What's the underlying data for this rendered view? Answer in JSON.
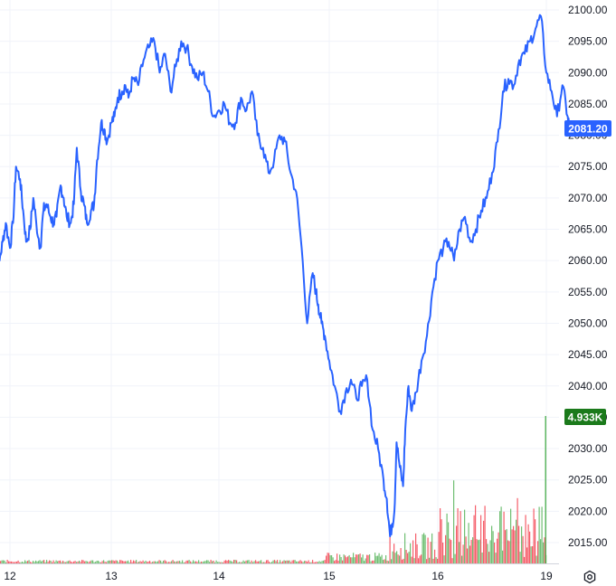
{
  "chart_data": {
    "type": "line",
    "title": "",
    "xlabel": "",
    "ylabel": "",
    "x_ticks": [
      "12",
      "13",
      "14",
      "15",
      "16",
      "19"
    ],
    "y_ticks": [
      "2015.00",
      "2020.00",
      "2025.00",
      "2030.00",
      "2035.00",
      "2040.00",
      "2045.00",
      "2050.00",
      "2055.00",
      "2060.00",
      "2065.00",
      "2070.00",
      "2075.00",
      "2080.00",
      "2085.00",
      "2090.00",
      "2095.00",
      "2100.00"
    ],
    "ylim": [
      2013.5,
      2101.5
    ],
    "grid": true,
    "series": [
      {
        "color": "#2962ff",
        "x": [
          11.85,
          11.87,
          11.9,
          11.93,
          11.96,
          12.0,
          12.03,
          12.06,
          12.1,
          12.13,
          12.16,
          12.2,
          12.23,
          12.26,
          12.3,
          12.33,
          12.36,
          12.4,
          12.43,
          12.46,
          12.5,
          12.53,
          12.56,
          12.6,
          12.63,
          12.66,
          12.7,
          12.73,
          12.76,
          12.8,
          12.83,
          12.86,
          12.9,
          12.93,
          12.96,
          13.0,
          13.03,
          13.06,
          13.1,
          13.13,
          13.16,
          13.2,
          13.25,
          13.3,
          13.35,
          13.4,
          13.45,
          13.5,
          13.55,
          13.6,
          13.65,
          13.7,
          13.75,
          13.8,
          13.85,
          13.9,
          13.95,
          14.0,
          14.05,
          14.1,
          14.15,
          14.2,
          14.25,
          14.3,
          14.35,
          14.4,
          14.45,
          14.5,
          14.55,
          14.6,
          14.65,
          14.7,
          14.75,
          14.8,
          14.85,
          14.88,
          14.9,
          14.93,
          14.96,
          15.0,
          15.05,
          15.1,
          15.15,
          15.2,
          15.25,
          15.3,
          15.35,
          15.4,
          15.45,
          15.5,
          15.53,
          15.56,
          15.58,
          15.6,
          15.62,
          15.65,
          15.68,
          15.7,
          15.73,
          15.76,
          15.8,
          15.85,
          15.9,
          15.95,
          16.0,
          16.05,
          16.1,
          16.15,
          16.2,
          16.25,
          16.3,
          16.35,
          16.4,
          16.45,
          16.5,
          16.55,
          16.6,
          16.65,
          16.7,
          16.75,
          16.8,
          16.85,
          16.9,
          16.95,
          17.0,
          17.05,
          17.1,
          17.15,
          17.2,
          17.22
        ],
        "y": [
          2085.5,
          2070,
          2060,
          2063,
          2066,
          2062,
          2066,
          2075,
          2073,
          2068,
          2063,
          2065,
          2070,
          2066,
          2062,
          2068,
          2069,
          2067,
          2066,
          2067,
          2072,
          2070,
          2067,
          2066,
          2069,
          2078,
          2071,
          2069,
          2066,
          2068,
          2069,
          2076,
          2082,
          2081,
          2079,
          2082,
          2083,
          2086,
          2087,
          2088,
          2086,
          2089,
          2088,
          2092,
          2094,
          2095,
          2090,
          2093,
          2087,
          2091,
          2095,
          2094,
          2091,
          2089,
          2090,
          2087,
          2083,
          2084,
          2085,
          2082,
          2082,
          2086,
          2084,
          2087,
          2080,
          2078,
          2074,
          2076,
          2080,
          2079,
          2074,
          2071,
          2062,
          2050,
          2058,
          2055,
          2053,
          2050,
          2048,
          2044,
          2040,
          2036,
          2039,
          2041,
          2038,
          2040,
          2041,
          2033,
          2030,
          2025,
          2022,
          2016,
          2018,
          2020,
          2031,
          2027,
          2024,
          2033,
          2040,
          2036,
          2039,
          2044,
          2048,
          2055,
          2060,
          2062,
          2063,
          2060,
          2065,
          2067,
          2063,
          2065,
          2068,
          2070,
          2074,
          2079,
          2087,
          2089,
          2088,
          2092,
          2093,
          2095,
          2097,
          2099,
          2090,
          2087,
          2083,
          2088,
          2083,
          2081.2
        ]
      }
    ],
    "volume": {
      "up_color": "#4caf50",
      "down_color": "#f23645"
    },
    "last_price": "2081.20",
    "last_volume": "4.933K",
    "last_price_color": "#2962ff",
    "last_volume_color": "#1b7a1b"
  },
  "icons": {
    "settings": "gear-icon"
  }
}
